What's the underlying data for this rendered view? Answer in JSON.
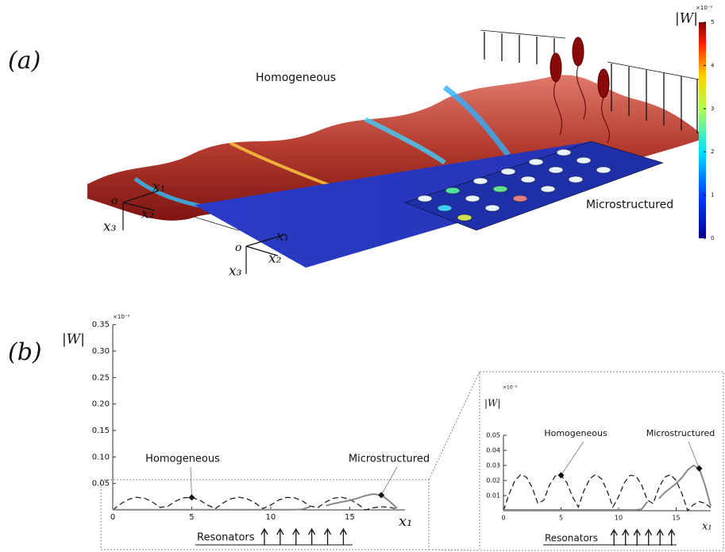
{
  "panel_a": {
    "label": "(a)",
    "homogeneous_label": "Homogeneous",
    "microstructured_label": "Microstructured",
    "axes_homogeneous": {
      "origin": "o",
      "x1": "x₁",
      "x2": "x₂",
      "x3": "x₃"
    },
    "axes_microstructured": {
      "origin": "o",
      "x1": "x₁",
      "x2": "x₂",
      "x3": "x₃"
    },
    "colorbar": {
      "title": "|W|",
      "exponent": "×10⁻²",
      "lim": [
        0,
        5
      ],
      "ticks": [
        0,
        1,
        2,
        3,
        4,
        5
      ]
    }
  },
  "chart_data": {
    "type": "line",
    "label": "(b)",
    "ylabel": "|W|",
    "xlabel": "x₁",
    "exponent": "×10⁻²",
    "xlim": [
      0,
      18.5
    ],
    "ylim": [
      0,
      0.35
    ],
    "xticks": [
      0,
      5,
      10,
      15
    ],
    "yticks": [
      0.05,
      {
        "value": 0.1,
        "label": "0.10"
      },
      0.15,
      {
        "value": 0.2,
        "label": "0.20"
      },
      0.25,
      {
        "value": 0.3,
        "label": "0.30"
      },
      0.35
    ],
    "x": [
      0,
      0.5,
      1,
      1.5,
      2,
      2.5,
      3,
      3.5,
      4,
      4.5,
      5,
      5.5,
      6,
      6.5,
      7,
      7.5,
      8,
      8.5,
      9,
      9.5,
      10,
      10.5,
      11,
      11.5,
      12,
      12.5,
      13,
      13.5,
      14,
      14.5,
      15,
      15.5,
      16,
      16.5,
      17,
      17.5,
      18
    ],
    "series": [
      {
        "name": "Homogeneous",
        "color": "#222222",
        "dash": true,
        "values": [
          0,
          0.0113,
          0.02,
          0.0239,
          0.0222,
          0.0152,
          0.0047,
          0.007,
          0.017,
          0.023,
          0.0235,
          0.0186,
          0.0092,
          0.0024,
          0.0133,
          0.0212,
          0.024,
          0.0212,
          0.0133,
          0.0024,
          0.0092,
          0.0186,
          0.0235,
          0.023,
          0.017,
          0.007,
          0.0047,
          0.0152,
          0.0222,
          0.0239,
          0.02,
          0.0113,
          0,
          0.004,
          0.006,
          0.005,
          0.002
        ]
      },
      {
        "name": "Microstructured",
        "color": "#888888",
        "dash": false,
        "values": [
          0.0005,
          0.0005,
          0.0005,
          0.0005,
          0.0005,
          0.0005,
          0.0005,
          0.0005,
          0.0005,
          0.0005,
          0.0005,
          0.0005,
          0.0005,
          0.0005,
          0.0005,
          0.0005,
          0.0005,
          0.0005,
          0.0005,
          0.0005,
          0.0005,
          0.0005,
          0.0005,
          0.0005,
          0.001,
          0.006,
          null,
          0.008,
          0.012,
          0.015,
          0.018,
          0.022,
          0.027,
          0.03,
          0.028,
          0.017,
          0.003
        ]
      }
    ],
    "resonators": {
      "label": "Resonators",
      "x": [
        9.6,
        10.6,
        11.6,
        12.6,
        13.6,
        14.6
      ]
    },
    "inset": {
      "ylabel": "|W|",
      "xlabel": "x₁",
      "exponent": "×10⁻²",
      "xlim": [
        0,
        18
      ],
      "ylim": [
        0,
        0.05
      ],
      "xticks": [
        0,
        5,
        10,
        15
      ],
      "yticks": [
        0.01,
        0.02,
        0.03,
        0.04,
        0.05
      ]
    }
  }
}
